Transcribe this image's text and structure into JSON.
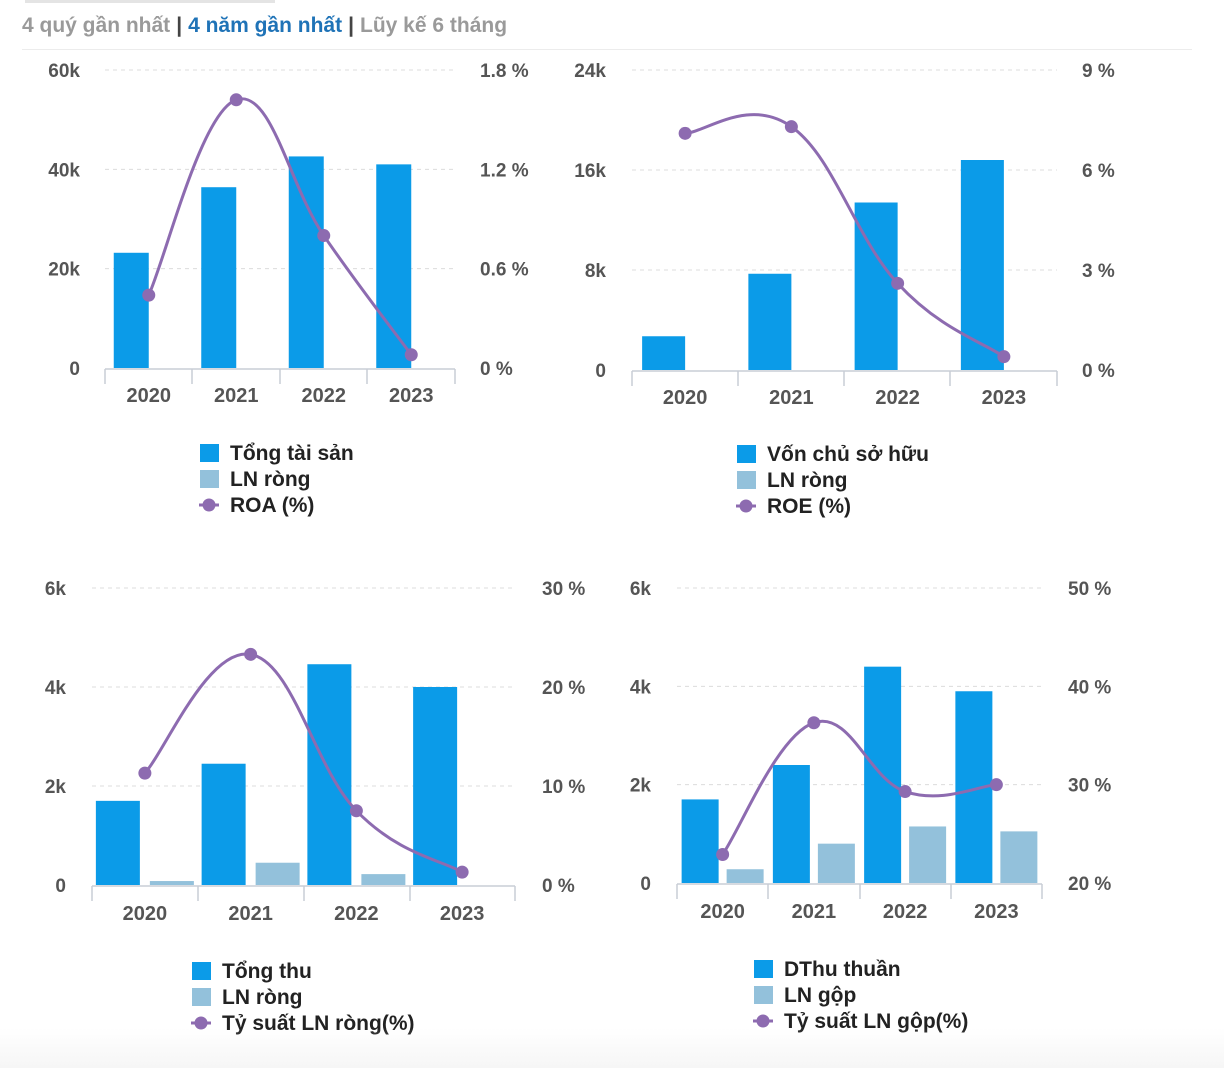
{
  "tabs": {
    "quarters": "4 quý gần nhất",
    "years": "4 năm gần nhất",
    "cumulative": "Lũy kế 6 tháng",
    "separator": "|"
  },
  "colors": {
    "primary_bar": "#0b9be8",
    "secondary_bar": "#93c1db",
    "line": "#8d6bb0",
    "axis_text": "#555555",
    "legend_text": "#222222"
  },
  "chart_data": [
    {
      "type": "bar",
      "title": "",
      "categories": [
        "2020",
        "2021",
        "2022",
        "2023"
      ],
      "series": [
        {
          "name": "Tổng tài sản",
          "kind": "bar",
          "axis": "left",
          "values": [
            23200,
            36400,
            42600,
            41000
          ]
        },
        {
          "name": "LN ròng",
          "kind": "bar",
          "axis": "left",
          "values": [
            0,
            0,
            0,
            0
          ]
        },
        {
          "name": "ROA (%)",
          "kind": "line",
          "axis": "right",
          "values": [
            0.44,
            1.62,
            0.8,
            0.08
          ]
        }
      ],
      "y_left": {
        "ylim": [
          0,
          60000
        ],
        "ticks": [
          "60k",
          "40k",
          "20k",
          "0"
        ]
      },
      "y_right": {
        "ylim": [
          0,
          1.8
        ],
        "ticks": [
          "1.8 %",
          "1.2 %",
          "0.6 %",
          "0 %"
        ]
      },
      "legend": [
        "Tổng tài sản",
        "LN ròng",
        "ROA (%)"
      ],
      "legend_position": "bottom"
    },
    {
      "type": "bar",
      "title": "",
      "categories": [
        "2020",
        "2021",
        "2022",
        "2023"
      ],
      "series": [
        {
          "name": "Vốn chủ sở hữu",
          "kind": "bar",
          "axis": "left",
          "values": [
            2700,
            7700,
            13400,
            16800
          ]
        },
        {
          "name": "LN ròng",
          "kind": "bar",
          "axis": "left",
          "values": [
            0,
            0,
            0,
            0
          ]
        },
        {
          "name": "ROE (%)",
          "kind": "line",
          "axis": "right",
          "values": [
            7.1,
            7.3,
            2.6,
            0.4
          ]
        }
      ],
      "y_left": {
        "ylim": [
          0,
          24000
        ],
        "ticks": [
          "24k",
          "16k",
          "8k",
          "0"
        ]
      },
      "y_right": {
        "ylim": [
          0,
          9
        ],
        "ticks": [
          "9 %",
          "6 %",
          "3 %",
          "0 %"
        ]
      },
      "legend": [
        "Vốn chủ sở hữu",
        "LN ròng",
        "ROE (%)"
      ],
      "legend_position": "bottom"
    },
    {
      "type": "bar",
      "title": "",
      "categories": [
        "2020",
        "2021",
        "2022",
        "2023"
      ],
      "series": [
        {
          "name": "Tổng thu",
          "kind": "bar",
          "axis": "left",
          "values": [
            1700,
            2450,
            4460,
            4000
          ]
        },
        {
          "name": "LN ròng",
          "kind": "bar",
          "axis": "left",
          "values": [
            80,
            450,
            220,
            0
          ]
        },
        {
          "name": "Tỷ suất LN ròng(%)",
          "kind": "line",
          "axis": "right",
          "values": [
            11.3,
            23.3,
            7.5,
            1.3
          ]
        }
      ],
      "y_left": {
        "ylim": [
          0,
          6000
        ],
        "ticks": [
          "6k",
          "4k",
          "2k",
          "0"
        ]
      },
      "y_right": {
        "ylim": [
          0,
          30
        ],
        "ticks": [
          "30 %",
          "20 %",
          "10 %",
          "0 %"
        ]
      },
      "legend": [
        "Tổng thu",
        "LN ròng",
        "Tỷ suất LN ròng(%)"
      ],
      "legend_position": "bottom"
    },
    {
      "type": "bar",
      "title": "",
      "categories": [
        "2020",
        "2021",
        "2022",
        "2023"
      ],
      "series": [
        {
          "name": "DThu thuần",
          "kind": "bar",
          "axis": "left",
          "values": [
            1700,
            2400,
            4400,
            3900
          ]
        },
        {
          "name": "LN gộp",
          "kind": "bar",
          "axis": "left",
          "values": [
            280,
            800,
            1150,
            1050
          ]
        },
        {
          "name": "Tỷ suất LN gộp(%)",
          "kind": "line",
          "axis": "right",
          "values": [
            22.9,
            36.3,
            29.3,
            30.0
          ]
        }
      ],
      "y_left": {
        "ylim": [
          0,
          6000
        ],
        "ticks": [
          "6k",
          "4k",
          "2k",
          "0"
        ]
      },
      "y_right": {
        "ylim": [
          20,
          50
        ],
        "ticks": [
          "50 %",
          "40 %",
          "30 %",
          "20 %"
        ]
      },
      "legend": [
        "DThu thuần",
        "LN gộp",
        "Tỷ suất LN gộp(%)"
      ],
      "legend_position": "bottom"
    }
  ]
}
